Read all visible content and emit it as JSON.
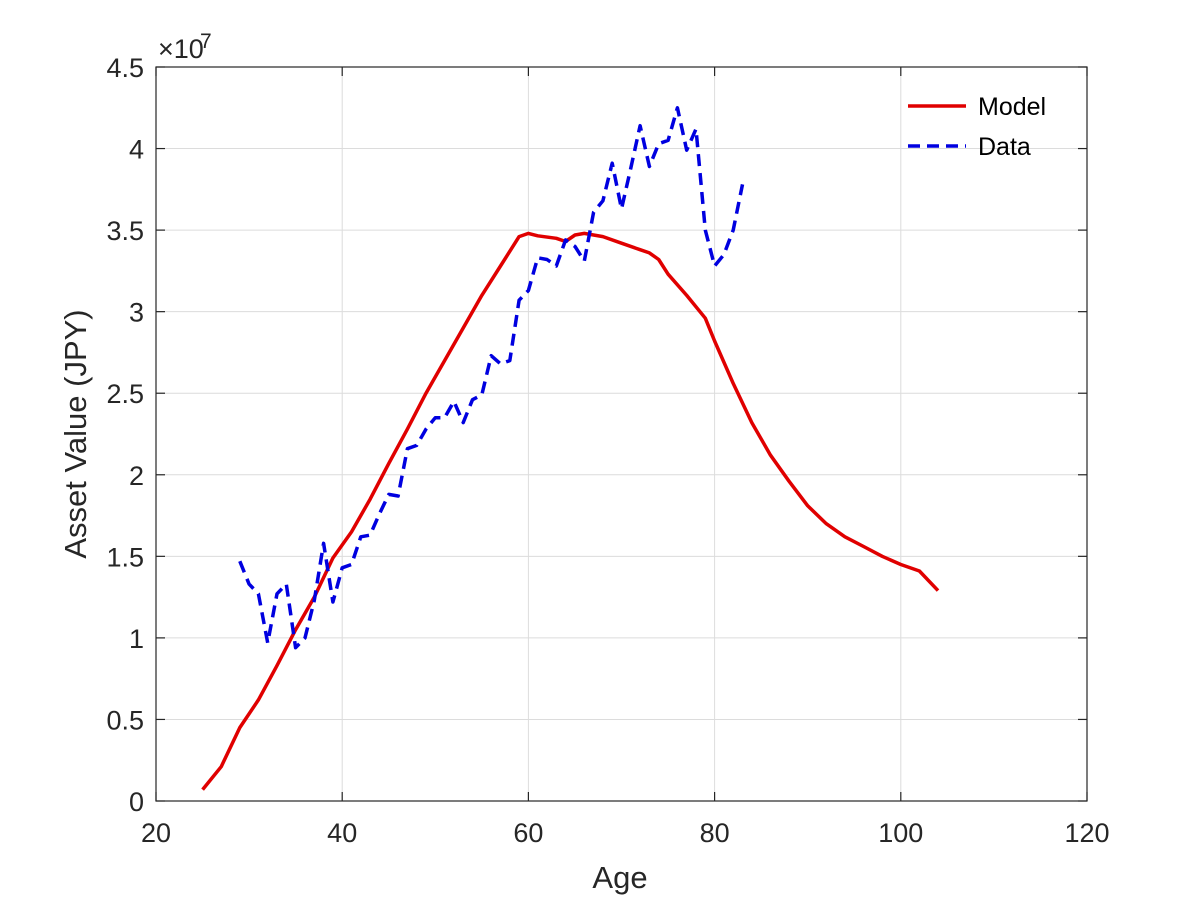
{
  "chart_data": {
    "type": "line",
    "title": "",
    "xlabel": "Age",
    "ylabel": "Asset Value (JPY)",
    "xlim": [
      20,
      120
    ],
    "ylim": [
      0,
      45000000
    ],
    "xticks": [
      20,
      40,
      60,
      80,
      100,
      120
    ],
    "yticks": [
      0,
      5000000,
      10000000,
      15000000,
      20000000,
      25000000,
      30000000,
      35000000,
      40000000,
      45000000
    ],
    "y_tick_labels": [
      "0",
      "0.5",
      "1",
      "1.5",
      "2",
      "2.5",
      "3",
      "3.5",
      "4",
      "4.5"
    ],
    "x_tick_labels": [
      "20",
      "40",
      "60",
      "80",
      "100",
      "120"
    ],
    "y_exponent": {
      "base": "×10",
      "power": "7"
    },
    "grid": true,
    "legend_position": "top-right",
    "series": [
      {
        "name": "Model",
        "color": "#e00000",
        "style": "solid",
        "points": [
          [
            25,
            700000
          ],
          [
            27,
            2100000
          ],
          [
            29,
            4500000
          ],
          [
            31,
            6200000
          ],
          [
            33,
            8300000
          ],
          [
            35,
            10500000
          ],
          [
            37,
            12500000
          ],
          [
            39,
            14900000
          ],
          [
            41,
            16500000
          ],
          [
            43,
            18500000
          ],
          [
            45,
            20700000
          ],
          [
            47,
            22800000
          ],
          [
            49,
            25000000
          ],
          [
            51,
            27000000
          ],
          [
            53,
            29000000
          ],
          [
            55,
            31000000
          ],
          [
            57,
            32800000
          ],
          [
            59,
            34600000
          ],
          [
            60,
            34800000
          ],
          [
            61,
            34650000
          ],
          [
            63,
            34500000
          ],
          [
            64,
            34300000
          ],
          [
            65,
            34700000
          ],
          [
            66,
            34800000
          ],
          [
            68,
            34600000
          ],
          [
            70,
            34200000
          ],
          [
            72,
            33800000
          ],
          [
            73,
            33600000
          ],
          [
            74,
            33200000
          ],
          [
            75,
            32300000
          ],
          [
            77,
            31000000
          ],
          [
            79,
            29600000
          ],
          [
            80,
            28200000
          ],
          [
            82,
            25600000
          ],
          [
            84,
            23200000
          ],
          [
            86,
            21200000
          ],
          [
            88,
            19600000
          ],
          [
            90,
            18100000
          ],
          [
            92,
            17000000
          ],
          [
            94,
            16200000
          ],
          [
            96,
            15600000
          ],
          [
            98,
            15000000
          ],
          [
            100,
            14500000
          ],
          [
            102,
            14100000
          ],
          [
            104,
            12900000
          ]
        ]
      },
      {
        "name": "Data",
        "color": "#0000e0",
        "style": "dashed",
        "points": [
          [
            29,
            14700000
          ],
          [
            30,
            13300000
          ],
          [
            31,
            12700000
          ],
          [
            32,
            9700000
          ],
          [
            33,
            12700000
          ],
          [
            34,
            13300000
          ],
          [
            35,
            9400000
          ],
          [
            36,
            10000000
          ],
          [
            37,
            12300000
          ],
          [
            38,
            15800000
          ],
          [
            39,
            12200000
          ],
          [
            40,
            14300000
          ],
          [
            41,
            14500000
          ],
          [
            42,
            16200000
          ],
          [
            43,
            16300000
          ],
          [
            44,
            17600000
          ],
          [
            45,
            18800000
          ],
          [
            46,
            18700000
          ],
          [
            47,
            21600000
          ],
          [
            48,
            21800000
          ],
          [
            49,
            22800000
          ],
          [
            50,
            23500000
          ],
          [
            51,
            23500000
          ],
          [
            52,
            24500000
          ],
          [
            53,
            23200000
          ],
          [
            54,
            24600000
          ],
          [
            55,
            24900000
          ],
          [
            56,
            27300000
          ],
          [
            57,
            26800000
          ],
          [
            58,
            27000000
          ],
          [
            59,
            30700000
          ],
          [
            60,
            31300000
          ],
          [
            61,
            33300000
          ],
          [
            62,
            33200000
          ],
          [
            63,
            32800000
          ],
          [
            64,
            34400000
          ],
          [
            65,
            34000000
          ],
          [
            66,
            33100000
          ],
          [
            67,
            36100000
          ],
          [
            68,
            36800000
          ],
          [
            69,
            39100000
          ],
          [
            70,
            36300000
          ],
          [
            71,
            38800000
          ],
          [
            72,
            41400000
          ],
          [
            73,
            38900000
          ],
          [
            74,
            40300000
          ],
          [
            75,
            40500000
          ],
          [
            76,
            42500000
          ],
          [
            77,
            39900000
          ],
          [
            78,
            41200000
          ],
          [
            79,
            35000000
          ],
          [
            80,
            32800000
          ],
          [
            81,
            33500000
          ],
          [
            82,
            35000000
          ],
          [
            83,
            37800000
          ]
        ]
      }
    ]
  }
}
